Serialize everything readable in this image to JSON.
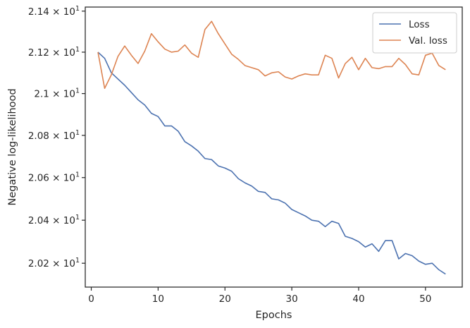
{
  "chart_data": {
    "type": "line",
    "xlabel": "Epochs",
    "ylabel": "Negative log-likelihood",
    "xlim": [
      -0.9,
      55.5
    ],
    "ylim": [
      20.09,
      21.42
    ],
    "yscale": "log",
    "grid": false,
    "legend_position": "top-right",
    "x_ticks": [
      {
        "value": 0,
        "label": "0"
      },
      {
        "value": 10,
        "label": "10"
      },
      {
        "value": 20,
        "label": "20"
      },
      {
        "value": 30,
        "label": "30"
      },
      {
        "value": 40,
        "label": "40"
      },
      {
        "value": 50,
        "label": "50"
      }
    ],
    "y_ticks": [
      {
        "value": 20.2,
        "mantissa": "2.02",
        "base": "10",
        "exp": "1"
      },
      {
        "value": 20.4,
        "mantissa": "2.04",
        "base": "10",
        "exp": "1"
      },
      {
        "value": 20.6,
        "mantissa": "2.06",
        "base": "10",
        "exp": "1"
      },
      {
        "value": 20.8,
        "mantissa": "2.08",
        "base": "10",
        "exp": "1"
      },
      {
        "value": 21.0,
        "mantissa": "2.1",
        "base": "10",
        "exp": "1"
      },
      {
        "value": 21.2,
        "mantissa": "2.12",
        "base": "10",
        "exp": "1"
      },
      {
        "value": 21.4,
        "mantissa": "2.14",
        "base": "10",
        "exp": "1"
      }
    ],
    "series": [
      {
        "name": "Loss",
        "color": "#4c72b0",
        "x": [
          1,
          2,
          3,
          4,
          5,
          6,
          7,
          8,
          9,
          10,
          11,
          12,
          13,
          14,
          15,
          16,
          17,
          18,
          19,
          20,
          21,
          22,
          23,
          24,
          25,
          26,
          27,
          28,
          29,
          30,
          31,
          32,
          33,
          34,
          35,
          36,
          37,
          38,
          39,
          40,
          41,
          42,
          43,
          44,
          45,
          46,
          47,
          48,
          49,
          50,
          51,
          52,
          53
        ],
        "y": [
          21.2,
          21.17,
          21.1,
          21.07,
          21.04,
          21.005,
          20.97,
          20.945,
          20.905,
          20.89,
          20.845,
          20.845,
          20.82,
          20.77,
          20.75,
          20.725,
          20.69,
          20.685,
          20.655,
          20.645,
          20.63,
          20.595,
          20.575,
          20.56,
          20.535,
          20.53,
          20.5,
          20.495,
          20.48,
          20.45,
          20.435,
          20.42,
          20.4,
          20.395,
          20.37,
          20.395,
          20.385,
          20.325,
          20.315,
          20.3,
          20.275,
          20.29,
          20.255,
          20.305,
          20.305,
          20.22,
          20.245,
          20.235,
          20.21,
          20.195,
          20.2,
          20.17,
          20.15
        ]
      },
      {
        "name": "Val. loss",
        "color": "#dd8452",
        "x": [
          1,
          2,
          3,
          4,
          5,
          6,
          7,
          8,
          9,
          10,
          11,
          12,
          13,
          14,
          15,
          16,
          17,
          18,
          19,
          20,
          21,
          22,
          23,
          24,
          25,
          26,
          27,
          28,
          29,
          30,
          31,
          32,
          33,
          34,
          35,
          36,
          37,
          38,
          39,
          40,
          41,
          42,
          43,
          44,
          45,
          46,
          47,
          48,
          49,
          50,
          51,
          52,
          53
        ],
        "y": [
          21.2,
          21.025,
          21.09,
          21.18,
          21.23,
          21.185,
          21.145,
          21.205,
          21.29,
          21.25,
          21.215,
          21.2,
          21.205,
          21.235,
          21.195,
          21.175,
          21.31,
          21.35,
          21.29,
          21.24,
          21.19,
          21.165,
          21.135,
          21.125,
          21.115,
          21.085,
          21.1,
          21.105,
          21.08,
          21.07,
          21.085,
          21.095,
          21.09,
          21.09,
          21.185,
          21.17,
          21.075,
          21.145,
          21.175,
          21.115,
          21.17,
          21.125,
          21.12,
          21.13,
          21.13,
          21.17,
          21.14,
          21.095,
          21.09,
          21.185,
          21.195,
          21.135,
          21.115
        ]
      }
    ]
  }
}
